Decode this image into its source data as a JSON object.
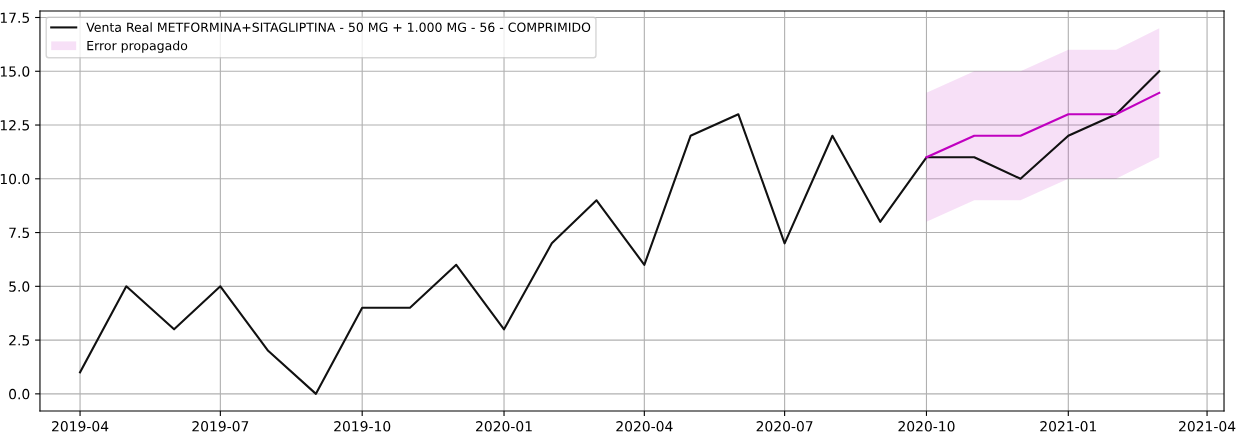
{
  "chart_data": {
    "type": "line",
    "legend": "top left",
    "grid": true,
    "marker": "none",
    "line_style": "solid",
    "xlim": [
      "2019-03-06",
      "2021-04-12"
    ],
    "ylim": [
      -0.8,
      17.8
    ],
    "xticks": [
      {
        "value": "2019-04-01",
        "label": "2019-04"
      },
      {
        "value": "2019-07-01",
        "label": "2019-07"
      },
      {
        "value": "2019-10-01",
        "label": "2019-10"
      },
      {
        "value": "2020-01-01",
        "label": "2020-01"
      },
      {
        "value": "2020-04-01",
        "label": "2020-04"
      },
      {
        "value": "2020-07-01",
        "label": "2020-07"
      },
      {
        "value": "2020-10-01",
        "label": "2020-10"
      },
      {
        "value": "2021-01-01",
        "label": "2021-01"
      },
      {
        "value": "2021-04-01",
        "label": "2021-04"
      }
    ],
    "yticks": [
      {
        "value": 0,
        "label": "0.0"
      },
      {
        "value": 2.5,
        "label": "2.5"
      },
      {
        "value": 5,
        "label": "5.0"
      },
      {
        "value": 7.5,
        "label": "7.5"
      },
      {
        "value": 10,
        "label": "10.0"
      },
      {
        "value": 12.5,
        "label": "12.5"
      },
      {
        "value": 15,
        "label": "15.0"
      },
      {
        "value": 17.5,
        "label": "17.5"
      }
    ],
    "series": [
      {
        "type": "line",
        "name": "Venta Real METFORMINA+SITAGLIPTINA - 50 MG + 1.000 MG - 56 - COMPRIMIDO",
        "color": "#111111",
        "x": [
          "2019-04",
          "2019-05",
          "2019-06",
          "2019-07",
          "2019-08",
          "2019-09",
          "2019-10",
          "2019-11",
          "2019-12",
          "2020-01",
          "2020-02",
          "2020-03",
          "2020-04",
          "2020-05",
          "2020-06",
          "2020-07",
          "2020-08",
          "2020-09",
          "2020-10",
          "2020-11",
          "2020-12",
          "2021-01",
          "2021-02",
          "2021-03"
        ],
        "values": [
          1,
          5,
          3,
          5,
          2,
          0,
          4,
          4,
          6,
          3,
          7,
          9,
          6,
          12,
          13,
          7,
          12,
          8,
          11,
          11,
          10,
          12,
          13,
          15
        ]
      },
      {
        "name": "Error propagado",
        "color": "#c000c0",
        "x": [
          "2020-10",
          "2020-11",
          "2020-12",
          "2021-01",
          "2021-02",
          "2021-03"
        ],
        "values": [
          11,
          12,
          12,
          13,
          13,
          14
        ],
        "lower": [
          8,
          9,
          9,
          10,
          10,
          11
        ],
        "upper": [
          14,
          15,
          15,
          16,
          16,
          17
        ]
      }
    ]
  }
}
